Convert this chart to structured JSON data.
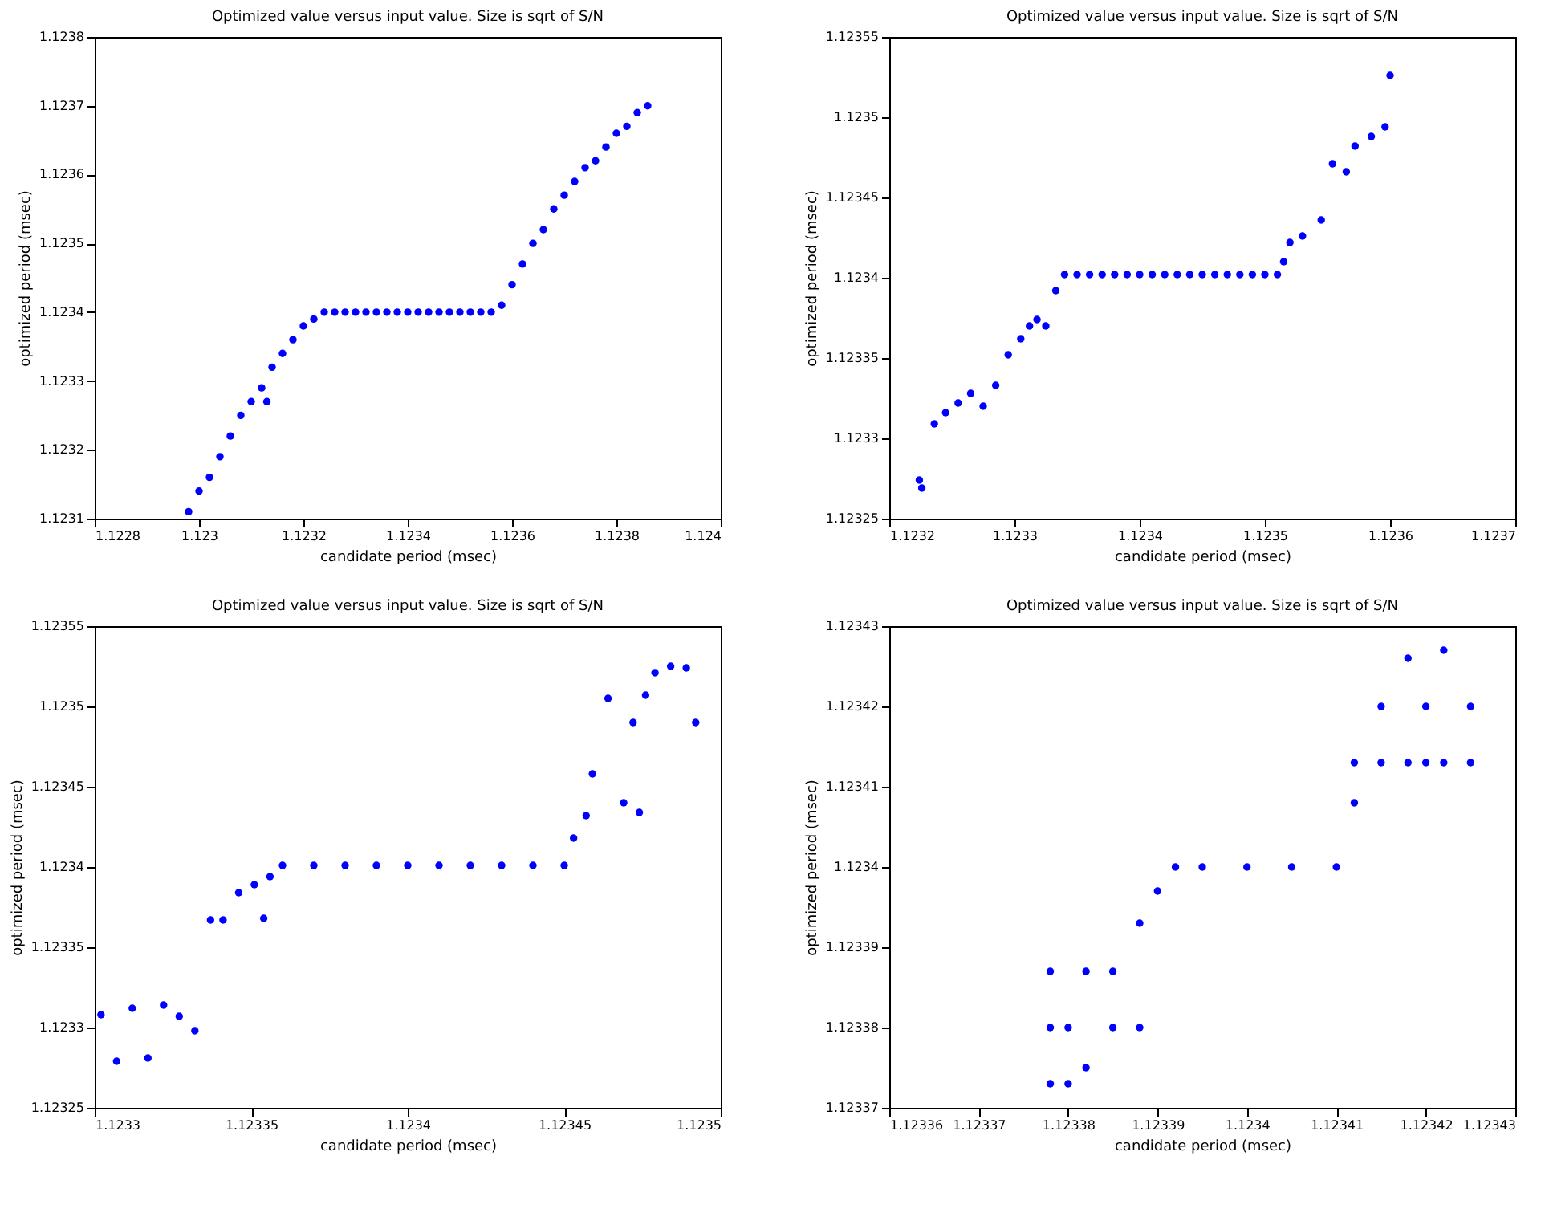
{
  "chart_data": [
    {
      "type": "scatter",
      "title": "Optimized value versus input value. Size is sqrt of S/N",
      "xlabel": "candidate period (msec)",
      "ylabel": "optimized period (msec)",
      "marker": "circle",
      "grid": false,
      "series": [
        {
          "color": "#0000ff",
          "x": [
            1.12298,
            1.123,
            1.12302,
            1.12304,
            1.12306,
            1.12308,
            1.1231,
            1.12312,
            1.12313,
            1.12314,
            1.12316,
            1.12318,
            1.1232,
            1.12322,
            1.12324,
            1.12326,
            1.12328,
            1.1233,
            1.12332,
            1.12334,
            1.12336,
            1.12338,
            1.1234,
            1.12342,
            1.12344,
            1.12346,
            1.12348,
            1.1235,
            1.12352,
            1.12354,
            1.12356,
            1.12358,
            1.1236,
            1.12362,
            1.12364,
            1.12366,
            1.12368,
            1.1237,
            1.12372,
            1.12374,
            1.12376,
            1.12378,
            1.1238,
            1.12382,
            1.12384,
            1.12386
          ],
          "values": [
            1.12311,
            1.12314,
            1.12316,
            1.12319,
            1.12322,
            1.12325,
            1.12327,
            1.12329,
            1.12327,
            1.12332,
            1.12334,
            1.12336,
            1.12338,
            1.12339,
            1.1234,
            1.1234,
            1.1234,
            1.1234,
            1.1234,
            1.1234,
            1.1234,
            1.1234,
            1.1234,
            1.1234,
            1.1234,
            1.1234,
            1.1234,
            1.1234,
            1.1234,
            1.1234,
            1.1234,
            1.12341,
            1.12344,
            1.12347,
            1.1235,
            1.12352,
            1.12355,
            1.12357,
            1.12359,
            1.12361,
            1.12362,
            1.12364,
            1.12366,
            1.12367,
            1.12369,
            1.1237
          ]
        }
      ],
      "xlim": [
        1.1228,
        1.124
      ],
      "xticks": [
        1.1228,
        1.123,
        1.1232,
        1.1234,
        1.1236,
        1.1238,
        1.124
      ],
      "ylim": [
        1.1231,
        1.1238
      ],
      "yticks": [
        1.1231,
        1.1232,
        1.1233,
        1.1234,
        1.1235,
        1.1236,
        1.1237,
        1.1238
      ]
    },
    {
      "type": "scatter",
      "title": "Optimized value versus input value. Size is sqrt of S/N",
      "xlabel": "candidate period (msec)",
      "ylabel": "optimized period (msec)",
      "marker": "circle",
      "grid": false,
      "series": [
        {
          "color": "#0000ff",
          "x": [
            1.123224,
            1.123226,
            1.123236,
            1.123245,
            1.123255,
            1.123265,
            1.123275,
            1.123285,
            1.123295,
            1.123305,
            1.123312,
            1.123318,
            1.123325,
            1.123333,
            1.12334,
            1.12335,
            1.12336,
            1.12337,
            1.12338,
            1.12339,
            1.1234,
            1.12341,
            1.12342,
            1.12343,
            1.12344,
            1.12345,
            1.12346,
            1.12347,
            1.12348,
            1.12349,
            1.1235,
            1.12351,
            1.123515,
            1.12352,
            1.12353,
            1.123545,
            1.123554,
            1.123565,
            1.123572,
            1.123585,
            1.123596,
            1.1236
          ],
          "values": [
            1.123274,
            1.123269,
            1.123309,
            1.123316,
            1.123322,
            1.123328,
            1.12332,
            1.123333,
            1.123352,
            1.123362,
            1.12337,
            1.123374,
            1.12337,
            1.123392,
            1.123402,
            1.123402,
            1.123402,
            1.123402,
            1.123402,
            1.123402,
            1.123402,
            1.123402,
            1.123402,
            1.123402,
            1.123402,
            1.123402,
            1.123402,
            1.123402,
            1.123402,
            1.123402,
            1.123402,
            1.123402,
            1.12341,
            1.123422,
            1.123426,
            1.123436,
            1.123471,
            1.123466,
            1.123482,
            1.123488,
            1.123494,
            1.123526
          ]
        }
      ],
      "xlim": [
        1.1232,
        1.1237
      ],
      "xticks": [
        1.1232,
        1.1233,
        1.1234,
        1.1235,
        1.1236,
        1.1237
      ],
      "ylim": [
        1.12325,
        1.12355
      ],
      "yticks": [
        1.12325,
        1.1233,
        1.12335,
        1.1234,
        1.12345,
        1.1235,
        1.12355
      ]
    },
    {
      "type": "scatter",
      "title": "Optimized value versus input value. Size is sqrt of S/N",
      "xlabel": "candidate period (msec)",
      "ylabel": "optimized period (msec)",
      "marker": "circle",
      "grid": false,
      "series": [
        {
          "color": "#0000ff",
          "x": [
            1.123302,
            1.123307,
            1.123312,
            1.123317,
            1.123322,
            1.123327,
            1.123332,
            1.123337,
            1.123341,
            1.123346,
            1.123351,
            1.123354,
            1.123356,
            1.12336,
            1.12337,
            1.12338,
            1.12339,
            1.1234,
            1.12341,
            1.12342,
            1.12343,
            1.12344,
            1.12345,
            1.123453,
            1.123457,
            1.123459,
            1.123464,
            1.123469,
            1.123472,
            1.123474,
            1.123476,
            1.123479,
            1.123484,
            1.123489,
            1.123492
          ],
          "values": [
            1.123308,
            1.123279,
            1.123312,
            1.123281,
            1.123314,
            1.123307,
            1.123298,
            1.123367,
            1.123367,
            1.123384,
            1.123389,
            1.123368,
            1.123394,
            1.123401,
            1.123401,
            1.123401,
            1.123401,
            1.123401,
            1.123401,
            1.123401,
            1.123401,
            1.123401,
            1.123401,
            1.123418,
            1.123432,
            1.123458,
            1.123505,
            1.12344,
            1.12349,
            1.123434,
            1.123507,
            1.123521,
            1.123525,
            1.123524,
            1.12349
          ]
        }
      ],
      "xlim": [
        1.1233,
        1.1235
      ],
      "xticks": [
        1.1233,
        1.12335,
        1.1234,
        1.12345,
        1.1235
      ],
      "ylim": [
        1.12325,
        1.12355
      ],
      "yticks": [
        1.12325,
        1.1233,
        1.12335,
        1.1234,
        1.12345,
        1.1235,
        1.12355
      ]
    },
    {
      "type": "scatter",
      "title": "Optimized value versus input value. Size is sqrt of S/N",
      "xlabel": "candidate period (msec)",
      "ylabel": "optimized period (msec)",
      "marker": "circle",
      "grid": false,
      "series": [
        {
          "color": "#0000ff",
          "x": [
            1.123378,
            1.123378,
            1.123378,
            1.12338,
            1.12338,
            1.123382,
            1.123382,
            1.123385,
            1.123385,
            1.123388,
            1.123388,
            1.12339,
            1.123392,
            1.123395,
            1.1234,
            1.123405,
            1.12341,
            1.123412,
            1.123412,
            1.123415,
            1.123415,
            1.123418,
            1.123418,
            1.12342,
            1.12342,
            1.123422,
            1.123422,
            1.123425,
            1.123425
          ],
          "values": [
            1.123387,
            1.12338,
            1.123373,
            1.12338,
            1.123373,
            1.123387,
            1.123375,
            1.12338,
            1.123387,
            1.12338,
            1.123393,
            1.123397,
            1.1234,
            1.1234,
            1.1234,
            1.1234,
            1.1234,
            1.123413,
            1.123408,
            1.123413,
            1.12342,
            1.123413,
            1.123426,
            1.123413,
            1.12342,
            1.123427,
            1.123413,
            1.123413,
            1.12342
          ]
        }
      ],
      "xlim": [
        1.12336,
        1.12343
      ],
      "xticks": [
        1.12336,
        1.12337,
        1.12338,
        1.12339,
        1.1234,
        1.12341,
        1.12342,
        1.12343
      ],
      "ylim": [
        1.12337,
        1.12343
      ],
      "yticks": [
        1.12337,
        1.12338,
        1.12339,
        1.1234,
        1.12341,
        1.12342,
        1.12343
      ]
    }
  ]
}
